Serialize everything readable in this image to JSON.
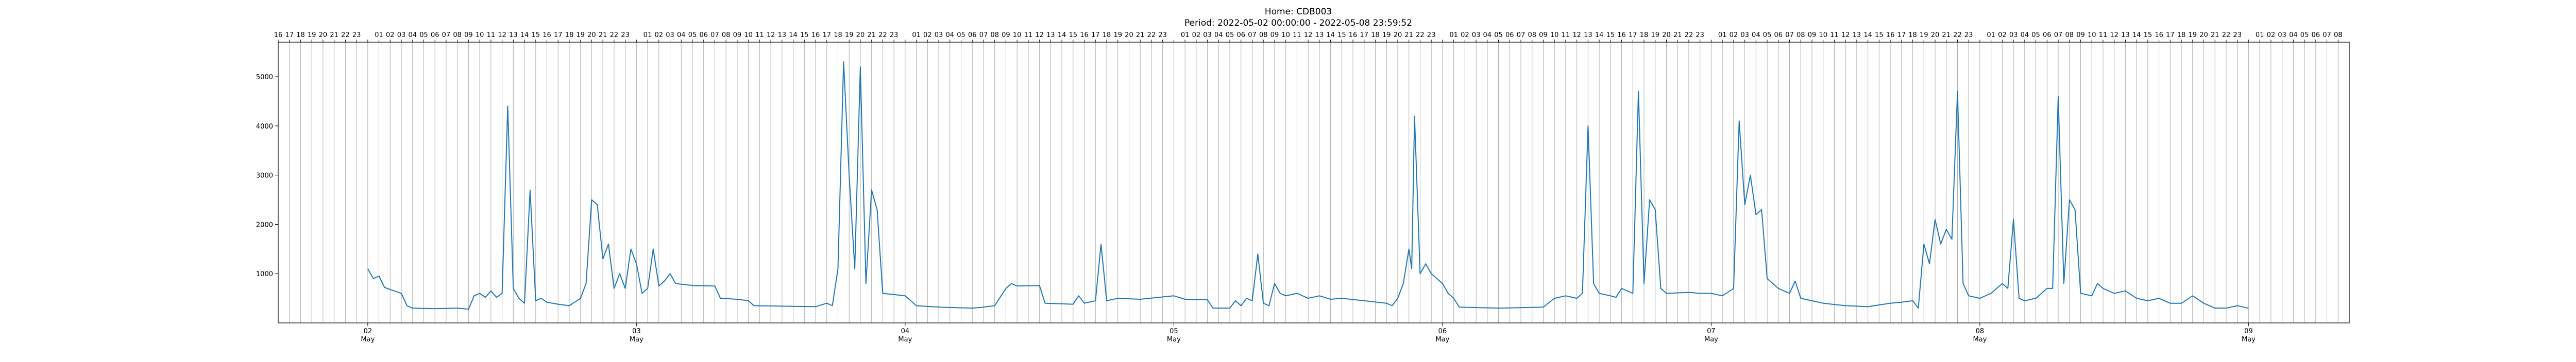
{
  "chart_data": {
    "type": "line",
    "title": "Home: CDB003",
    "subtitle": "Period: 2022-05-02 00:00:00 - 2022-05-08 23:59:52",
    "xlabel": "",
    "ylabel": "",
    "ylim": [
      0,
      5700
    ],
    "xlim": [
      "2022-05-01 16:00",
      "2022-05-09 09:00"
    ],
    "grid": "vertical lines at each hour",
    "y_ticks": [
      1000,
      2000,
      3000,
      4000,
      5000
    ],
    "x_date_ticks": [
      {
        "date": "2022-05-02",
        "day": "02",
        "month": "May"
      },
      {
        "date": "2022-05-03",
        "day": "03",
        "month": "May"
      },
      {
        "date": "2022-05-04",
        "day": "04",
        "month": "May"
      },
      {
        "date": "2022-05-05",
        "day": "05",
        "month": "May"
      },
      {
        "date": "2022-05-06",
        "day": "06",
        "month": "May"
      },
      {
        "date": "2022-05-07",
        "day": "07",
        "month": "May"
      },
      {
        "date": "2022-05-08",
        "day": "08",
        "month": "May"
      },
      {
        "date": "2022-05-09",
        "day": "09",
        "month": "May"
      }
    ],
    "top_hour_labels": [
      "16",
      "17",
      "18",
      "19",
      "20",
      "21",
      "22",
      "23",
      "",
      "01",
      "02",
      "03",
      "04",
      "05",
      "06",
      "07",
      "08",
      "09",
      "10",
      "11",
      "12",
      "13",
      "14",
      "15",
      "16",
      "17",
      "18",
      "19",
      "20",
      "21",
      "22",
      "23",
      "",
      "01",
      "02",
      "03",
      "04",
      "05",
      "06",
      "07",
      "08",
      "09",
      "10",
      "11",
      "12",
      "13",
      "14",
      "15",
      "16",
      "17",
      "18",
      "19",
      "20",
      "21",
      "22",
      "23",
      "",
      "01",
      "02",
      "03",
      "04",
      "05",
      "06",
      "07",
      "08",
      "09",
      "10",
      "11",
      "12",
      "13",
      "14",
      "15",
      "16",
      "17",
      "18",
      "19",
      "20",
      "21",
      "22",
      "23",
      "",
      "01",
      "02",
      "03",
      "04",
      "05",
      "06",
      "07",
      "08",
      "09",
      "10",
      "11",
      "12",
      "13",
      "14",
      "15",
      "16",
      "17",
      "18",
      "19",
      "20",
      "21",
      "22",
      "23",
      "",
      "01",
      "02",
      "03",
      "04",
      "05",
      "06",
      "07",
      "08",
      "09",
      "10",
      "11",
      "12",
      "13",
      "14",
      "15",
      "16",
      "17",
      "18",
      "19",
      "20",
      "21",
      "22",
      "23",
      "",
      "01",
      "02",
      "03",
      "04",
      "05",
      "06",
      "07",
      "08",
      "09",
      "10",
      "11",
      "12",
      "13",
      "14",
      "15",
      "16",
      "17",
      "18",
      "19",
      "20",
      "21",
      "22",
      "23",
      "",
      "01",
      "02",
      "03",
      "04",
      "05",
      "06",
      "07",
      "08",
      "09",
      "10",
      "11",
      "12",
      "13",
      "14",
      "15",
      "16",
      "17",
      "18",
      "19",
      "20",
      "21",
      "22",
      "23",
      "",
      "01",
      "02",
      "03",
      "04",
      "05",
      "06",
      "07",
      "08"
    ],
    "series": [
      {
        "name": "",
        "color": "#1f77b4",
        "points": [
          [
            "2022-05-02 00:00",
            1100
          ],
          [
            "2022-05-02 00:30",
            900
          ],
          [
            "2022-05-02 01:00",
            950
          ],
          [
            "2022-05-02 01:30",
            720
          ],
          [
            "2022-05-02 02:00",
            680
          ],
          [
            "2022-05-02 03:00",
            600
          ],
          [
            "2022-05-02 03:30",
            350
          ],
          [
            "2022-05-02 04:00",
            300
          ],
          [
            "2022-05-02 06:00",
            290
          ],
          [
            "2022-05-02 08:00",
            300
          ],
          [
            "2022-05-02 09:00",
            280
          ],
          [
            "2022-05-02 09:30",
            550
          ],
          [
            "2022-05-02 10:00",
            600
          ],
          [
            "2022-05-02 10:30",
            520
          ],
          [
            "2022-05-02 11:00",
            650
          ],
          [
            "2022-05-02 11:30",
            520
          ],
          [
            "2022-05-02 12:00",
            600
          ],
          [
            "2022-05-02 12:30",
            4400
          ],
          [
            "2022-05-02 13:00",
            700
          ],
          [
            "2022-05-02 13:30",
            500
          ],
          [
            "2022-05-02 14:00",
            400
          ],
          [
            "2022-05-02 14:30",
            2700
          ],
          [
            "2022-05-02 15:00",
            450
          ],
          [
            "2022-05-02 15:30",
            500
          ],
          [
            "2022-05-02 16:00",
            420
          ],
          [
            "2022-05-02 17:00",
            380
          ],
          [
            "2022-05-02 18:00",
            350
          ],
          [
            "2022-05-02 19:00",
            500
          ],
          [
            "2022-05-02 19:30",
            800
          ],
          [
            "2022-05-02 20:00",
            2500
          ],
          [
            "2022-05-02 20:30",
            2400
          ],
          [
            "2022-05-02 21:00",
            1300
          ],
          [
            "2022-05-02 21:30",
            1600
          ],
          [
            "2022-05-02 22:00",
            700
          ],
          [
            "2022-05-02 22:30",
            1000
          ],
          [
            "2022-05-02 23:00",
            700
          ],
          [
            "2022-05-02 23:30",
            1500
          ],
          [
            "2022-05-03 00:00",
            1200
          ],
          [
            "2022-05-03 00:30",
            600
          ],
          [
            "2022-05-03 01:00",
            700
          ],
          [
            "2022-05-03 01:30",
            1500
          ],
          [
            "2022-05-03 02:00",
            750
          ],
          [
            "2022-05-03 02:30",
            850
          ],
          [
            "2022-05-03 03:00",
            1000
          ],
          [
            "2022-05-03 03:30",
            800
          ],
          [
            "2022-05-03 05:00",
            760
          ],
          [
            "2022-05-03 07:00",
            750
          ],
          [
            "2022-05-03 07:30",
            500
          ],
          [
            "2022-05-03 09:00",
            480
          ],
          [
            "2022-05-03 10:00",
            450
          ],
          [
            "2022-05-03 10:30",
            350
          ],
          [
            "2022-05-03 13:00",
            340
          ],
          [
            "2022-05-03 16:00",
            330
          ],
          [
            "2022-05-03 17:00",
            400
          ],
          [
            "2022-05-03 17:30",
            350
          ],
          [
            "2022-05-03 18:00",
            1100
          ],
          [
            "2022-05-03 18:30",
            5300
          ],
          [
            "2022-05-03 19:00",
            3000
          ],
          [
            "2022-05-03 19:30",
            1100
          ],
          [
            "2022-05-03 20:00",
            5200
          ],
          [
            "2022-05-03 20:30",
            800
          ],
          [
            "2022-05-03 21:00",
            2700
          ],
          [
            "2022-05-03 21:30",
            2300
          ],
          [
            "2022-05-03 22:00",
            600
          ],
          [
            "2022-05-04 00:00",
            550
          ],
          [
            "2022-05-04 01:00",
            350
          ],
          [
            "2022-05-04 03:00",
            320
          ],
          [
            "2022-05-04 06:00",
            300
          ],
          [
            "2022-05-04 07:00",
            320
          ],
          [
            "2022-05-04 08:00",
            350
          ],
          [
            "2022-05-04 09:00",
            700
          ],
          [
            "2022-05-04 09:30",
            800
          ],
          [
            "2022-05-04 10:00",
            750
          ],
          [
            "2022-05-04 12:00",
            760
          ],
          [
            "2022-05-04 12:30",
            400
          ],
          [
            "2022-05-04 15:00",
            380
          ],
          [
            "2022-05-04 15:30",
            550
          ],
          [
            "2022-05-04 16:00",
            400
          ],
          [
            "2022-05-04 17:00",
            450
          ],
          [
            "2022-05-04 17:30",
            1600
          ],
          [
            "2022-05-04 18:00",
            450
          ],
          [
            "2022-05-04 19:00",
            500
          ],
          [
            "2022-05-04 21:00",
            480
          ],
          [
            "2022-05-05 00:00",
            550
          ],
          [
            "2022-05-05 01:00",
            480
          ],
          [
            "2022-05-05 03:00",
            470
          ],
          [
            "2022-05-05 03:30",
            300
          ],
          [
            "2022-05-05 05:00",
            300
          ],
          [
            "2022-05-05 05:30",
            450
          ],
          [
            "2022-05-05 06:00",
            350
          ],
          [
            "2022-05-05 06:30",
            500
          ],
          [
            "2022-05-05 07:00",
            450
          ],
          [
            "2022-05-05 07:30",
            1400
          ],
          [
            "2022-05-05 08:00",
            400
          ],
          [
            "2022-05-05 08:30",
            350
          ],
          [
            "2022-05-05 09:00",
            800
          ],
          [
            "2022-05-05 09:30",
            600
          ],
          [
            "2022-05-05 10:00",
            550
          ],
          [
            "2022-05-05 11:00",
            600
          ],
          [
            "2022-05-05 12:00",
            500
          ],
          [
            "2022-05-05 13:00",
            550
          ],
          [
            "2022-05-05 14:00",
            480
          ],
          [
            "2022-05-05 15:00",
            500
          ],
          [
            "2022-05-05 17:00",
            450
          ],
          [
            "2022-05-05 19:00",
            400
          ],
          [
            "2022-05-05 19:30",
            350
          ],
          [
            "2022-05-05 20:00",
            500
          ],
          [
            "2022-05-05 20:30",
            800
          ],
          [
            "2022-05-05 21:00",
            1500
          ],
          [
            "2022-05-05 21:15",
            1100
          ],
          [
            "2022-05-05 21:30",
            4200
          ],
          [
            "2022-05-05 22:00",
            1000
          ],
          [
            "2022-05-05 22:30",
            1200
          ],
          [
            "2022-05-05 23:00",
            1000
          ],
          [
            "2022-05-05 23:30",
            900
          ],
          [
            "2022-05-06 00:00",
            800
          ],
          [
            "2022-05-06 00:30",
            600
          ],
          [
            "2022-05-06 01:00",
            500
          ],
          [
            "2022-05-06 01:30",
            320
          ],
          [
            "2022-05-06 05:00",
            300
          ],
          [
            "2022-05-06 09:00",
            320
          ],
          [
            "2022-05-06 10:00",
            500
          ],
          [
            "2022-05-06 11:00",
            550
          ],
          [
            "2022-05-06 12:00",
            500
          ],
          [
            "2022-05-06 12:30",
            600
          ],
          [
            "2022-05-06 13:00",
            4000
          ],
          [
            "2022-05-06 13:30",
            800
          ],
          [
            "2022-05-06 14:00",
            600
          ],
          [
            "2022-05-06 15:00",
            550
          ],
          [
            "2022-05-06 15:30",
            520
          ],
          [
            "2022-05-06 16:00",
            700
          ],
          [
            "2022-05-06 17:00",
            600
          ],
          [
            "2022-05-06 17:30",
            4700
          ],
          [
            "2022-05-06 18:00",
            800
          ],
          [
            "2022-05-06 18:30",
            2500
          ],
          [
            "2022-05-06 19:00",
            2300
          ],
          [
            "2022-05-06 19:30",
            700
          ],
          [
            "2022-05-06 20:00",
            600
          ],
          [
            "2022-05-06 22:00",
            620
          ],
          [
            "2022-05-06 23:00",
            600
          ],
          [
            "2022-05-07 00:00",
            600
          ],
          [
            "2022-05-07 01:00",
            550
          ],
          [
            "2022-05-07 02:00",
            700
          ],
          [
            "2022-05-07 02:30",
            4100
          ],
          [
            "2022-05-07 03:00",
            2400
          ],
          [
            "2022-05-07 03:30",
            3000
          ],
          [
            "2022-05-07 04:00",
            2200
          ],
          [
            "2022-05-07 04:30",
            2300
          ],
          [
            "2022-05-07 05:00",
            900
          ],
          [
            "2022-05-07 06:00",
            700
          ],
          [
            "2022-05-07 07:00",
            600
          ],
          [
            "2022-05-07 07:30",
            850
          ],
          [
            "2022-05-07 08:00",
            500
          ],
          [
            "2022-05-07 09:00",
            450
          ],
          [
            "2022-05-07 10:00",
            400
          ],
          [
            "2022-05-07 12:00",
            350
          ],
          [
            "2022-05-07 14:00",
            330
          ],
          [
            "2022-05-07 16:00",
            400
          ],
          [
            "2022-05-07 17:00",
            420
          ],
          [
            "2022-05-07 18:00",
            450
          ],
          [
            "2022-05-07 18:30",
            300
          ],
          [
            "2022-05-07 19:00",
            1600
          ],
          [
            "2022-05-07 19:30",
            1200
          ],
          [
            "2022-05-07 20:00",
            2100
          ],
          [
            "2022-05-07 20:30",
            1600
          ],
          [
            "2022-05-07 21:00",
            1900
          ],
          [
            "2022-05-07 21:30",
            1700
          ],
          [
            "2022-05-07 22:00",
            4700
          ],
          [
            "2022-05-07 22:30",
            800
          ],
          [
            "2022-05-07 23:00",
            550
          ],
          [
            "2022-05-08 00:00",
            500
          ],
          [
            "2022-05-08 01:00",
            600
          ],
          [
            "2022-05-08 02:00",
            800
          ],
          [
            "2022-05-08 02:30",
            700
          ],
          [
            "2022-05-08 03:00",
            2100
          ],
          [
            "2022-05-08 03:30",
            500
          ],
          [
            "2022-05-08 04:00",
            450
          ],
          [
            "2022-05-08 05:00",
            500
          ],
          [
            "2022-05-08 06:00",
            700
          ],
          [
            "2022-05-08 06:30",
            700
          ],
          [
            "2022-05-08 07:00",
            4600
          ],
          [
            "2022-05-08 07:30",
            800
          ],
          [
            "2022-05-08 08:00",
            2500
          ],
          [
            "2022-05-08 08:30",
            2300
          ],
          [
            "2022-05-08 09:00",
            600
          ],
          [
            "2022-05-08 10:00",
            550
          ],
          [
            "2022-05-08 10:30",
            800
          ],
          [
            "2022-05-08 11:00",
            700
          ],
          [
            "2022-05-08 12:00",
            600
          ],
          [
            "2022-05-08 13:00",
            650
          ],
          [
            "2022-05-08 14:00",
            500
          ],
          [
            "2022-05-08 15:00",
            450
          ],
          [
            "2022-05-08 16:00",
            500
          ],
          [
            "2022-05-08 17:00",
            400
          ],
          [
            "2022-05-08 18:00",
            400
          ],
          [
            "2022-05-08 19:00",
            550
          ],
          [
            "2022-05-08 20:00",
            400
          ],
          [
            "2022-05-08 21:00",
            300
          ],
          [
            "2022-05-08 22:00",
            300
          ],
          [
            "2022-05-08 23:00",
            350
          ],
          [
            "2022-05-08 23:59",
            300
          ]
        ]
      }
    ]
  }
}
